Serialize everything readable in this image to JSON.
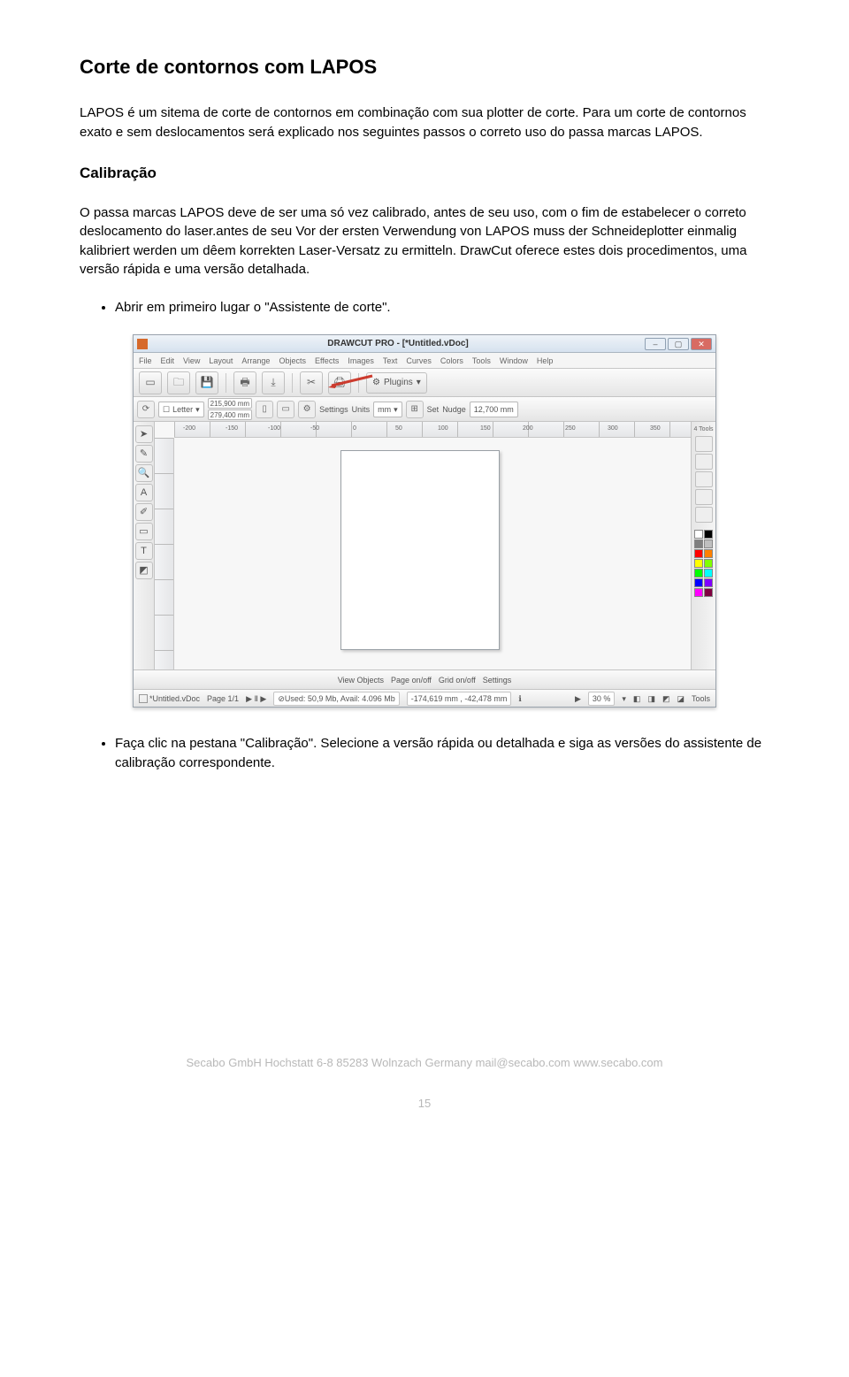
{
  "doc": {
    "heading": "Corte de contornos com LAPOS",
    "intro": "LAPOS é um sitema de corte de contornos em combinação com sua plotter de corte. Para um corte de contornos exato e sem deslocamentos será explicado nos seguintes passos o correto uso do passa marcas LAPOS.",
    "sub_heading": "Calibração",
    "calib_para": "O passa marcas LAPOS deve de ser uma só vez calibrado, antes de seu uso, com o fim de estabelecer o correto deslocamento do laser.antes de seu Vor der ersten Verwendung von LAPOS muss der Schneideplotter einmalig kalibriert werden um dêem korrekten Laser‑Versatz zu ermitteln. DrawCut oferece estes dois procedimentos, uma versão rápida e uma versão detalhada.",
    "bullet1": "Abrir em primeiro lugar o \"Assistente de corte\".",
    "bullet2": "Faça clic na pestana \"Calibração\". Selecione a versão rápida ou detalhada e siga as versões do assistente de calibração correspondente.",
    "footer": "Secabo GmbH   Hochstatt 6-8   85283 Wolnzach   Germany   mail@secabo.com   www.secabo.com",
    "page_no": "15"
  },
  "app": {
    "title": "DRAWCUT PRO - [*Untitled.vDoc]",
    "menus": [
      "File",
      "Edit",
      "View",
      "Layout",
      "Arrange",
      "Objects",
      "Effects",
      "Images",
      "Text",
      "Curves",
      "Colors",
      "Tools",
      "Window",
      "Help"
    ],
    "toolbar1": {
      "plugins_label": "Plugins",
      "arrow_color": "#cc3b2e"
    },
    "toolbar2": {
      "paper": "Letter",
      "dim_w": "215,900 mm",
      "dim_h": "279,400 mm",
      "settings_label": "Settings",
      "units_label": "Units",
      "units_value": "mm",
      "set_label": "Set",
      "nudge_label": "Nudge",
      "nudge_value": "12,700 mm"
    },
    "ruler_ticks": [
      "-200",
      "-150",
      "-100",
      "-50",
      "0",
      "50",
      "100",
      "150",
      "200",
      "250",
      "300",
      "350"
    ],
    "right_tools_label": "4 Tools",
    "swatch_colors": [
      "#ffffff",
      "#000000",
      "#7f7f7f",
      "#bfbfbf",
      "#ff0000",
      "#ff8000",
      "#ffff00",
      "#80ff00",
      "#00ff00",
      "#00ffff",
      "#0000ff",
      "#8000ff",
      "#ff00ff",
      "#800040"
    ],
    "status1": {
      "view_objects": "View Objects",
      "page_onoff": "Page on/off",
      "grid_onoff": "Grid on/off",
      "settings": "Settings"
    },
    "status2": {
      "tab1": "*Untitled.vDoc",
      "page": "Page 1/1",
      "mem": "Used: 50,9 Mb, Avail: 4.096 Mb",
      "coords": "-174,619 mm , -42,478 mm",
      "zoom": "30 %",
      "tools": "Tools"
    }
  }
}
